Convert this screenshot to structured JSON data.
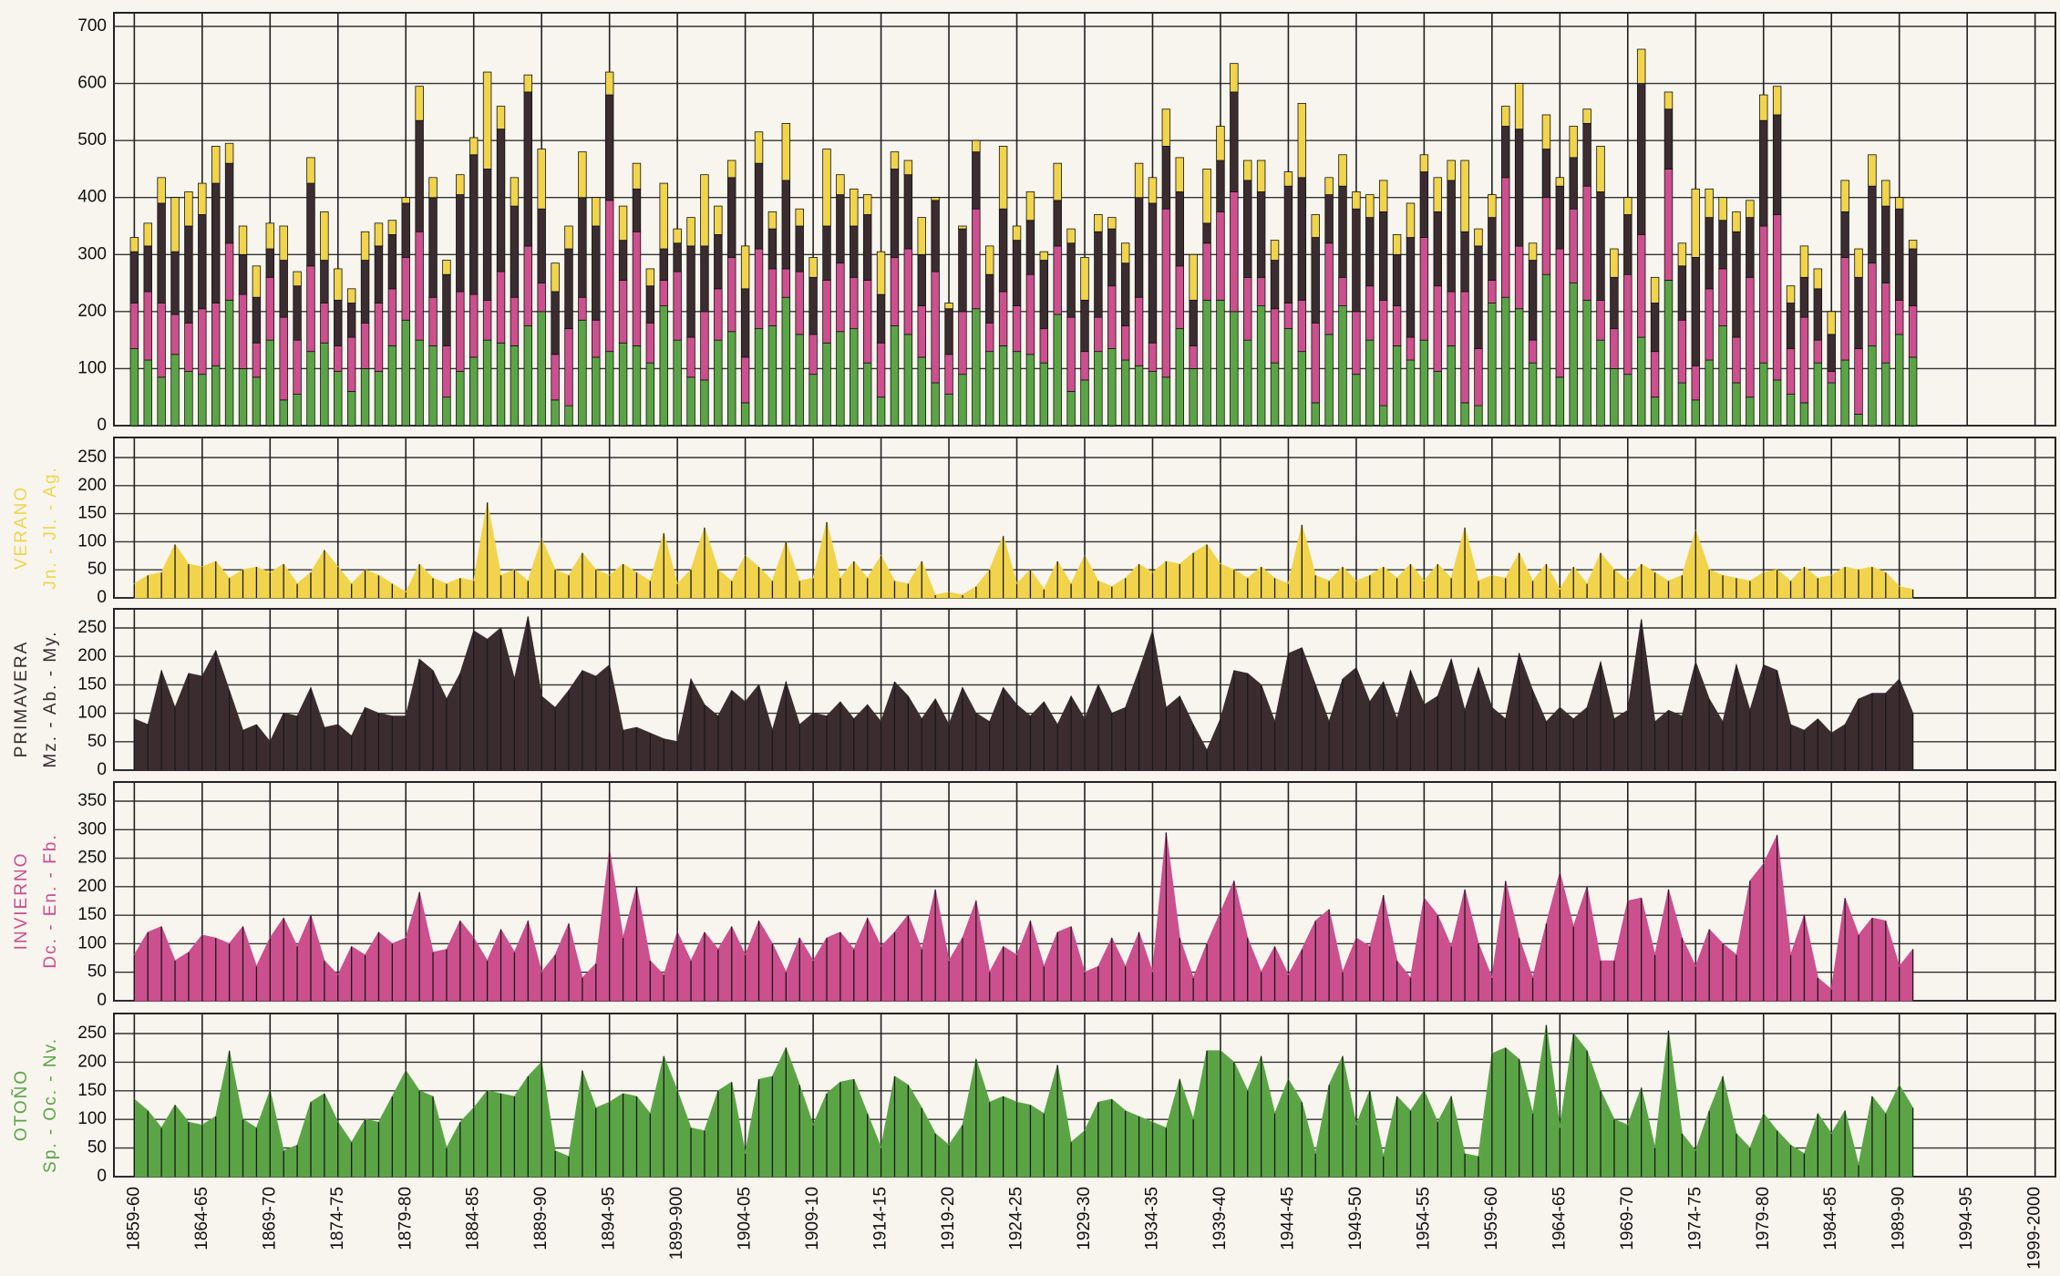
{
  "chart_data": {
    "type": "stacked-bar-panels",
    "x": [
      1859,
      1860,
      1861,
      1862,
      1863,
      1864,
      1865,
      1866,
      1867,
      1868,
      1869,
      1870,
      1871,
      1872,
      1873,
      1874,
      1875,
      1876,
      1877,
      1878,
      1879,
      1880,
      1881,
      1882,
      1883,
      1884,
      1885,
      1886,
      1887,
      1888,
      1889,
      1890,
      1891,
      1892,
      1893,
      1894,
      1895,
      1896,
      1897,
      1898,
      1899,
      1900,
      1901,
      1902,
      1903,
      1904,
      1905,
      1906,
      1907,
      1908,
      1909,
      1910,
      1911,
      1912,
      1913,
      1914,
      1915,
      1916,
      1917,
      1918,
      1919,
      1920,
      1921,
      1922,
      1923,
      1924,
      1925,
      1926,
      1927,
      1928,
      1929,
      1930,
      1931,
      1932,
      1933,
      1934,
      1935,
      1936,
      1937,
      1938,
      1939,
      1940,
      1941,
      1942,
      1943,
      1944,
      1945,
      1946,
      1947,
      1948,
      1949,
      1950,
      1951,
      1952,
      1953,
      1954,
      1955,
      1956,
      1957,
      1958,
      1959,
      1960,
      1961,
      1962,
      1963,
      1964,
      1965,
      1966,
      1967,
      1968,
      1969,
      1970,
      1971,
      1972,
      1973,
      1974,
      1975,
      1976,
      1977,
      1978,
      1979,
      1980,
      1981,
      1982,
      1983,
      1984,
      1985,
      1986,
      1987,
      1988,
      1989,
      1990
    ],
    "xlim": [
      1857.5,
      2000.5
    ],
    "xticks": [
      {
        "value": 1859,
        "label": "1859-60"
      },
      {
        "value": 1864,
        "label": "1864-65"
      },
      {
        "value": 1869,
        "label": "1869-70"
      },
      {
        "value": 1874,
        "label": "1874-75"
      },
      {
        "value": 1879,
        "label": "1879-80"
      },
      {
        "value": 1884,
        "label": "1884-85"
      },
      {
        "value": 1889,
        "label": "1889-90"
      },
      {
        "value": 1894,
        "label": "1894-95"
      },
      {
        "value": 1899,
        "label": "1899-900"
      },
      {
        "value": 1904,
        "label": "1904-05"
      },
      {
        "value": 1909,
        "label": "1909-10"
      },
      {
        "value": 1914,
        "label": "1914-15"
      },
      {
        "value": 1919,
        "label": "1919-20"
      },
      {
        "value": 1924,
        "label": "1924-25"
      },
      {
        "value": 1929,
        "label": "1929-30"
      },
      {
        "value": 1934,
        "label": "1934-35"
      },
      {
        "value": 1939,
        "label": "1939-40"
      },
      {
        "value": 1944,
        "label": "1944-45"
      },
      {
        "value": 1949,
        "label": "1949-50"
      },
      {
        "value": 1954,
        "label": "1954-55"
      },
      {
        "value": 1959,
        "label": "1959-60"
      },
      {
        "value": 1964,
        "label": "1964-65"
      },
      {
        "value": 1969,
        "label": "1969-70"
      },
      {
        "value": 1974,
        "label": "1974-75"
      },
      {
        "value": 1979,
        "label": "1979-80"
      },
      {
        "value": 1984,
        "label": "1984-85"
      },
      {
        "value": 1989,
        "label": "1989-90"
      },
      {
        "value": 1994,
        "label": "1994-95"
      },
      {
        "value": 1999,
        "label": "1999-2000"
      }
    ],
    "ylim": [
      0,
      700
    ],
    "yticks": [
      0,
      100,
      200,
      300,
      400,
      500,
      600,
      700
    ],
    "series": [
      {
        "name": "VERANO",
        "subtitle": "Jn. - Jl. - Ag.",
        "color": "#f1d44c",
        "ylim": [
          0,
          250
        ],
        "yticks": [
          0,
          50,
          100,
          150,
          200,
          250
        ],
        "values": [
          25,
          40,
          45,
          95,
          60,
          55,
          65,
          35,
          50,
          55,
          45,
          60,
          25,
          45,
          85,
          55,
          25,
          50,
          40,
          25,
          10,
          60,
          35,
          25,
          35,
          30,
          170,
          40,
          50,
          30,
          105,
          50,
          40,
          80,
          50,
          40,
          60,
          45,
          30,
          115,
          25,
          50,
          125,
          50,
          30,
          75,
          55,
          30,
          100,
          30,
          35,
          135,
          35,
          65,
          35,
          75,
          30,
          25,
          65,
          5,
          10,
          5,
          20,
          50,
          110,
          25,
          50,
          15,
          65,
          25,
          75,
          30,
          20,
          35,
          60,
          45,
          65,
          60,
          80,
          95,
          60,
          50,
          35,
          55,
          35,
          25,
          130,
          40,
          30,
          55,
          30,
          40,
          55,
          35,
          60,
          30,
          60,
          35,
          125,
          30,
          40,
          35,
          80,
          30,
          60,
          15,
          55,
          25,
          80,
          50,
          30,
          60,
          45,
          30,
          40,
          120,
          50,
          40,
          35,
          30,
          45,
          50,
          30,
          55,
          35,
          40,
          55,
          50,
          55,
          45,
          20,
          15
        ]
      },
      {
        "name": "PRIMAVERA",
        "subtitle": "Mz. - Ab. - My.",
        "color": "#3b2c30",
        "ylim": [
          0,
          250
        ],
        "yticks": [
          0,
          50,
          100,
          150,
          200,
          250
        ],
        "values": [
          90,
          80,
          175,
          110,
          170,
          165,
          210,
          140,
          70,
          80,
          50,
          100,
          95,
          145,
          75,
          80,
          60,
          110,
          100,
          95,
          95,
          195,
          175,
          125,
          170,
          245,
          230,
          250,
          160,
          270,
          130,
          110,
          140,
          175,
          165,
          185,
          70,
          75,
          65,
          55,
          50,
          160,
          115,
          95,
          140,
          120,
          150,
          70,
          155,
          80,
          100,
          95,
          120,
          90,
          115,
          85,
          155,
          130,
          90,
          125,
          80,
          145,
          100,
          85,
          145,
          115,
          95,
          120,
          80,
          130,
          90,
          150,
          100,
          110,
          175,
          245,
          110,
          130,
          80,
          35,
          90,
          175,
          170,
          150,
          85,
          205,
          215,
          150,
          85,
          160,
          180,
          120,
          155,
          90,
          175,
          115,
          130,
          195,
          105,
          180,
          110,
          90,
          205,
          140,
          85,
          110,
          90,
          110,
          190,
          90,
          105,
          265,
          85,
          105,
          95,
          190,
          125,
          85,
          185,
          105,
          185,
          175,
          80,
          70,
          90,
          65,
          80,
          125,
          135,
          135,
          160,
          100
        ]
      },
      {
        "name": "INVIERNO",
        "subtitle": "Dc. - En. - Fb.",
        "color": "#cc4f8e",
        "ylim": [
          0,
          350
        ],
        "yticks": [
          0,
          50,
          100,
          150,
          200,
          250,
          300,
          350
        ],
        "values": [
          80,
          120,
          130,
          70,
          85,
          115,
          110,
          100,
          130,
          60,
          110,
          145,
          95,
          150,
          70,
          45,
          95,
          80,
          120,
          100,
          110,
          190,
          85,
          90,
          140,
          110,
          70,
          125,
          85,
          140,
          50,
          80,
          135,
          40,
          65,
          265,
          110,
          200,
          70,
          45,
          120,
          70,
          120,
          90,
          130,
          80,
          140,
          100,
          50,
          110,
          70,
          110,
          120,
          90,
          145,
          95,
          120,
          150,
          90,
          195,
          70,
          110,
          175,
          50,
          95,
          80,
          140,
          60,
          120,
          130,
          50,
          60,
          110,
          60,
          120,
          50,
          295,
          110,
          40,
          100,
          155,
          210,
          110,
          50,
          95,
          45,
          90,
          140,
          160,
          50,
          110,
          95,
          185,
          70,
          40,
          180,
          150,
          95,
          195,
          100,
          40,
          210,
          110,
          40,
          135,
          225,
          130,
          200,
          70,
          70,
          175,
          180,
          80,
          195,
          110,
          60,
          125,
          100,
          80,
          210,
          240,
          290,
          80,
          150,
          40,
          20,
          180,
          115,
          145,
          140,
          60,
          90
        ]
      },
      {
        "name": "OTOÑO",
        "subtitle": "Sp. - Oc. - Nv.",
        "color": "#5ba446",
        "ylim": [
          0,
          250
        ],
        "yticks": [
          0,
          50,
          100,
          150,
          200,
          250
        ],
        "values": [
          135,
          115,
          85,
          125,
          95,
          90,
          105,
          220,
          100,
          85,
          150,
          45,
          55,
          130,
          145,
          95,
          60,
          100,
          95,
          140,
          185,
          150,
          140,
          50,
          95,
          120,
          150,
          145,
          140,
          175,
          200,
          45,
          35,
          185,
          120,
          130,
          145,
          140,
          110,
          210,
          150,
          85,
          80,
          150,
          165,
          40,
          170,
          175,
          225,
          160,
          90,
          145,
          165,
          170,
          110,
          50,
          175,
          160,
          120,
          75,
          55,
          90,
          205,
          130,
          140,
          130,
          125,
          110,
          195,
          60,
          80,
          130,
          135,
          115,
          105,
          95,
          85,
          170,
          100,
          220,
          220,
          200,
          150,
          210,
          110,
          170,
          130,
          40,
          160,
          210,
          90,
          150,
          35,
          140,
          115,
          150,
          95,
          140,
          40,
          35,
          215,
          225,
          205,
          110,
          265,
          85,
          250,
          220,
          150,
          100,
          90,
          155,
          50,
          255,
          75,
          45,
          115,
          175,
          75,
          50,
          110,
          80,
          55,
          40,
          110,
          75,
          115,
          20,
          140,
          110,
          160,
          120
        ]
      }
    ]
  }
}
